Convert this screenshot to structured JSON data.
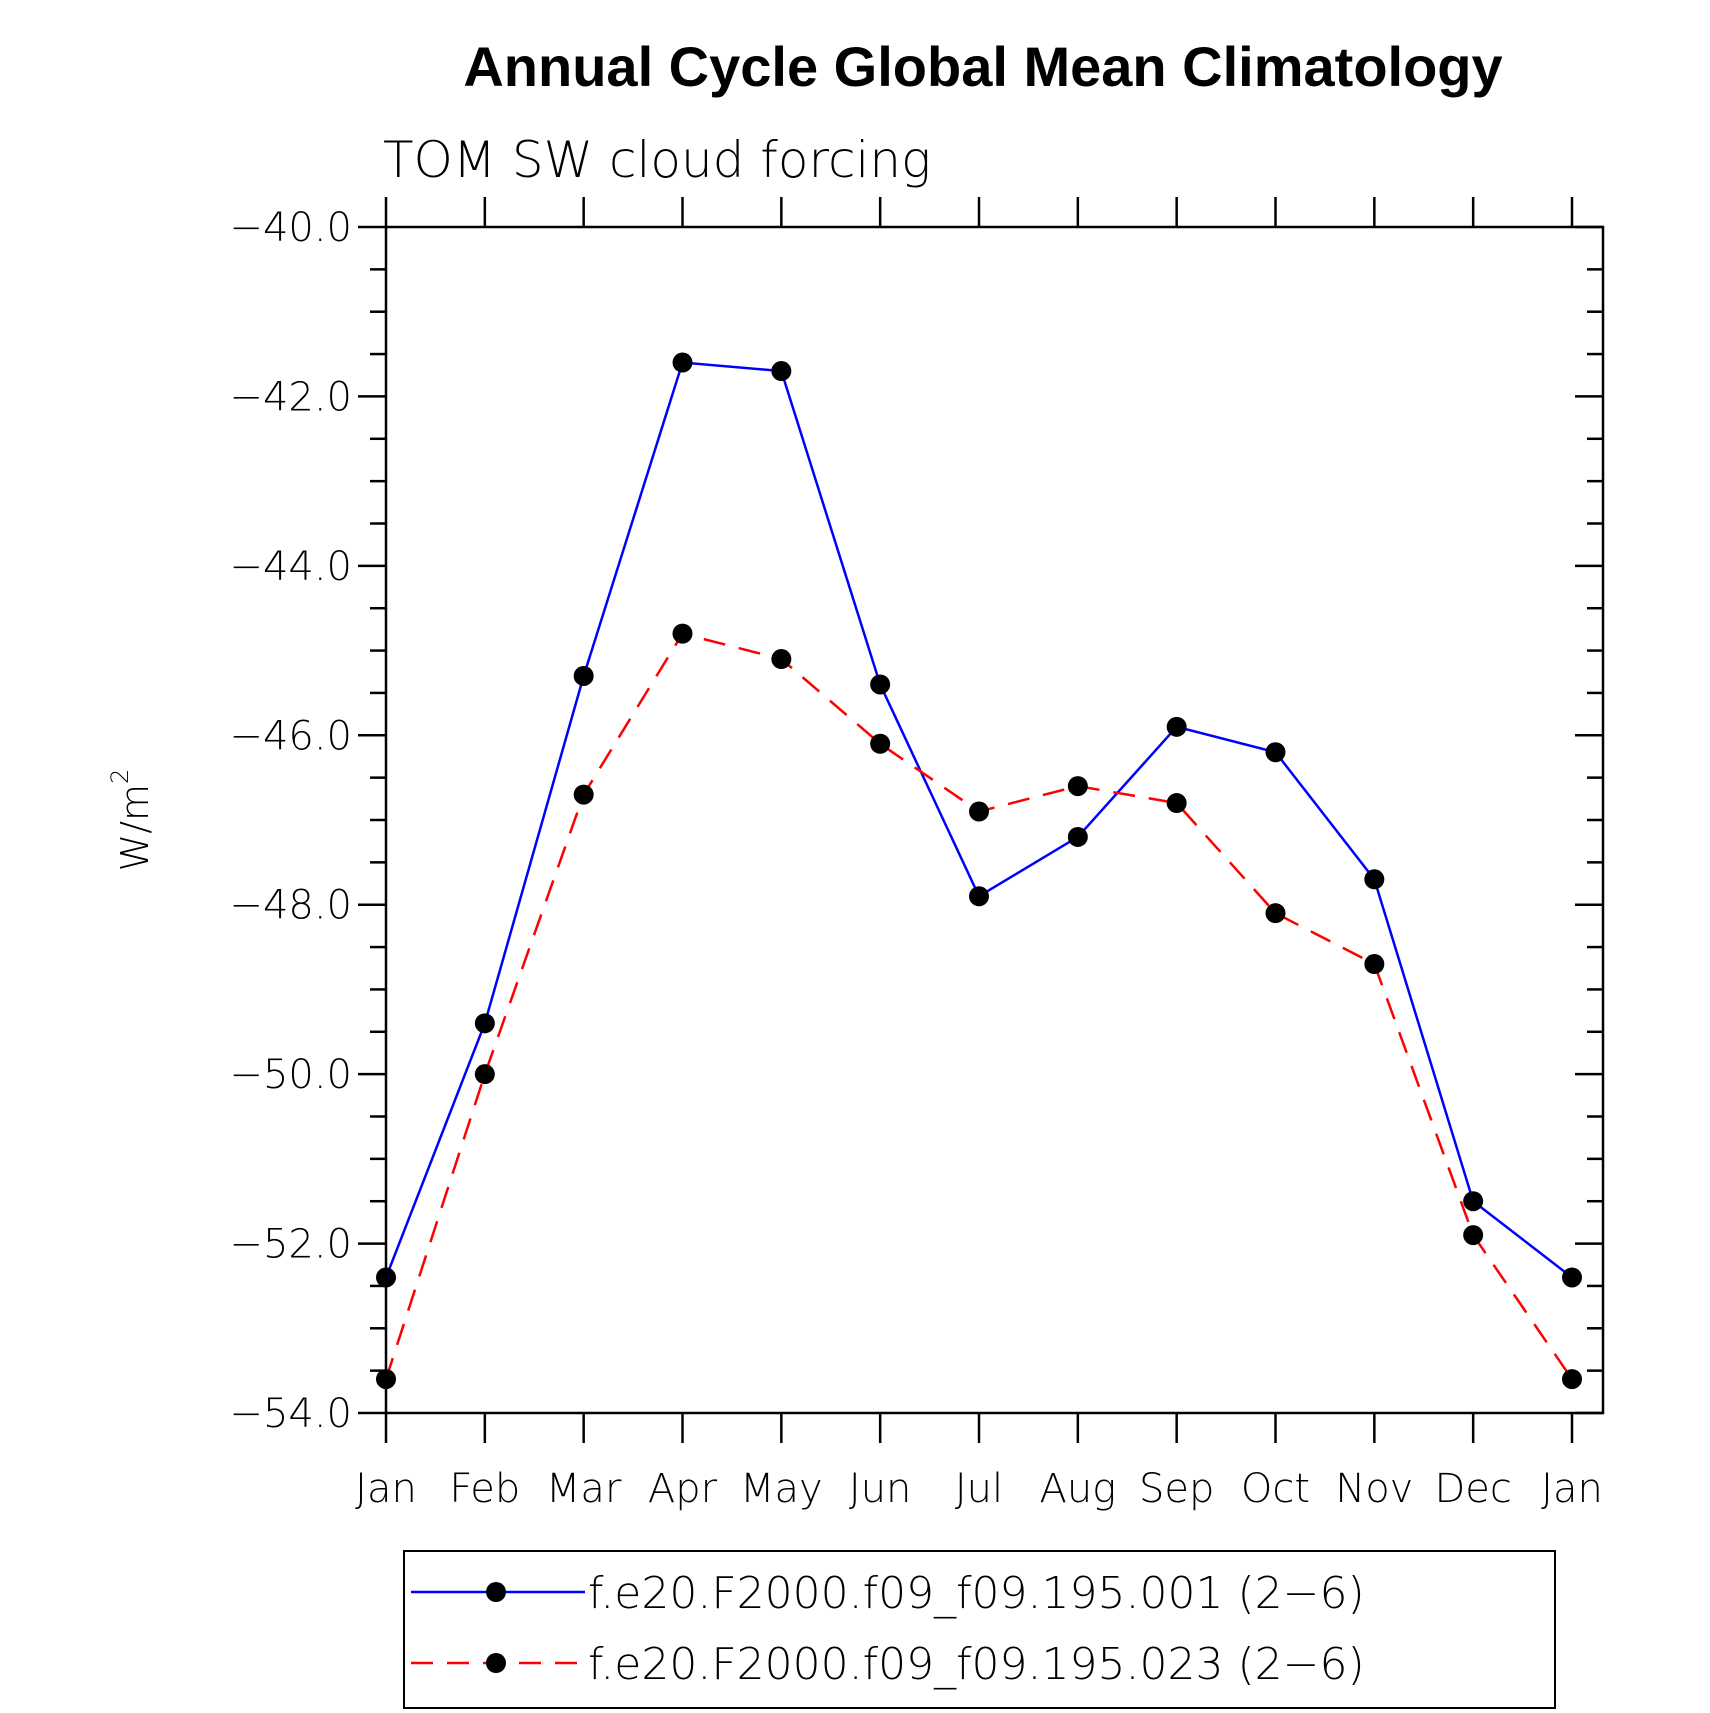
{
  "chart_data": {
    "type": "line",
    "title": "Annual Cycle Global Mean Climatology",
    "subtitle": "TOM SW cloud forcing",
    "ylabel": "W/m",
    "ylabel_sup": "2",
    "ylim": [
      -54.0,
      -40.0
    ],
    "yticks": [
      "-40.0",
      "-42.0",
      "-44.0",
      "-46.0",
      "-48.0",
      "-50.0",
      "-52.0",
      "-54.0"
    ],
    "yticks_values": [
      -40,
      -42,
      -44,
      -46,
      -48,
      -50,
      -52,
      -54
    ],
    "categories": [
      "Jan",
      "Feb",
      "Mar",
      "Apr",
      "May",
      "Jun",
      "Jul",
      "Aug",
      "Sep",
      "Oct",
      "Nov",
      "Dec",
      "Jan"
    ],
    "series": [
      {
        "name": "f.e20.F2000.f09_f09.195.001 (2-6)",
        "color": "#0000ff",
        "dash": "solid",
        "values": [
          -52.4,
          -49.4,
          -45.3,
          -41.6,
          -41.7,
          -45.4,
          -47.9,
          -47.2,
          -45.9,
          -46.2,
          -47.7,
          -51.5,
          -52.4
        ]
      },
      {
        "name": "f.e20.F2000.f09_f09.195.023 (2-6)",
        "color": "#ff0000",
        "dash": "dashed",
        "values": [
          -53.6,
          -50.0,
          -46.7,
          -44.8,
          -45.1,
          -46.1,
          -46.9,
          -46.6,
          -46.8,
          -48.1,
          -48.7,
          -51.9,
          -53.6
        ]
      }
    ],
    "legend_position": "bottom",
    "grid": false
  }
}
